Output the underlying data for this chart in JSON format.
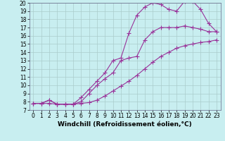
{
  "background_color": "#c8eef0",
  "line_color": "#993399",
  "marker": "+",
  "markersize": 4,
  "linewidth": 0.8,
  "xlabel": "Windchill (Refroidissement éolien,°C)",
  "xlabel_fontsize": 6.5,
  "tick_fontsize": 5.5,
  "xlim": [
    -0.5,
    23.5
  ],
  "ylim": [
    7,
    20
  ],
  "yticks": [
    7,
    8,
    9,
    10,
    11,
    12,
    13,
    14,
    15,
    16,
    17,
    18,
    19,
    20
  ],
  "xticks": [
    0,
    1,
    2,
    3,
    4,
    5,
    6,
    7,
    8,
    9,
    10,
    11,
    12,
    13,
    14,
    15,
    16,
    17,
    18,
    19,
    20,
    21,
    22,
    23
  ],
  "grid_color": "#aacccc",
  "series": [
    {
      "x": [
        0,
        1,
        2,
        3,
        4,
        5,
        6,
        7,
        8,
        9,
        10,
        11,
        12,
        13,
        14,
        15,
        16,
        17,
        18,
        19,
        20,
        21,
        22,
        23
      ],
      "y": [
        7.8,
        7.8,
        7.8,
        7.7,
        7.7,
        7.7,
        7.8,
        7.9,
        8.2,
        8.7,
        9.3,
        9.9,
        10.5,
        11.2,
        12.0,
        12.8,
        13.5,
        14.0,
        14.5,
        14.8,
        15.0,
        15.2,
        15.3,
        15.5
      ]
    },
    {
      "x": [
        0,
        1,
        2,
        3,
        4,
        5,
        6,
        7,
        8,
        9,
        10,
        11,
        12,
        13,
        14,
        15,
        16,
        17,
        18,
        19,
        20,
        21,
        22,
        23
      ],
      "y": [
        7.8,
        7.8,
        8.2,
        7.7,
        7.7,
        7.7,
        8.5,
        9.5,
        10.5,
        11.5,
        13.0,
        13.3,
        16.3,
        18.5,
        19.5,
        20.0,
        19.8,
        19.2,
        19.0,
        20.2,
        20.2,
        19.2,
        17.5,
        16.5
      ]
    },
    {
      "x": [
        0,
        1,
        2,
        3,
        4,
        5,
        6,
        7,
        8,
        9,
        10,
        11,
        12,
        13,
        14,
        15,
        16,
        17,
        18,
        19,
        20,
        21,
        22,
        23
      ],
      "y": [
        7.8,
        7.8,
        8.2,
        7.7,
        7.7,
        7.7,
        8.0,
        9.0,
        10.0,
        10.8,
        11.5,
        13.0,
        13.3,
        13.5,
        15.5,
        16.5,
        17.0,
        17.0,
        17.0,
        17.2,
        17.0,
        16.8,
        16.5,
        16.5
      ]
    }
  ]
}
